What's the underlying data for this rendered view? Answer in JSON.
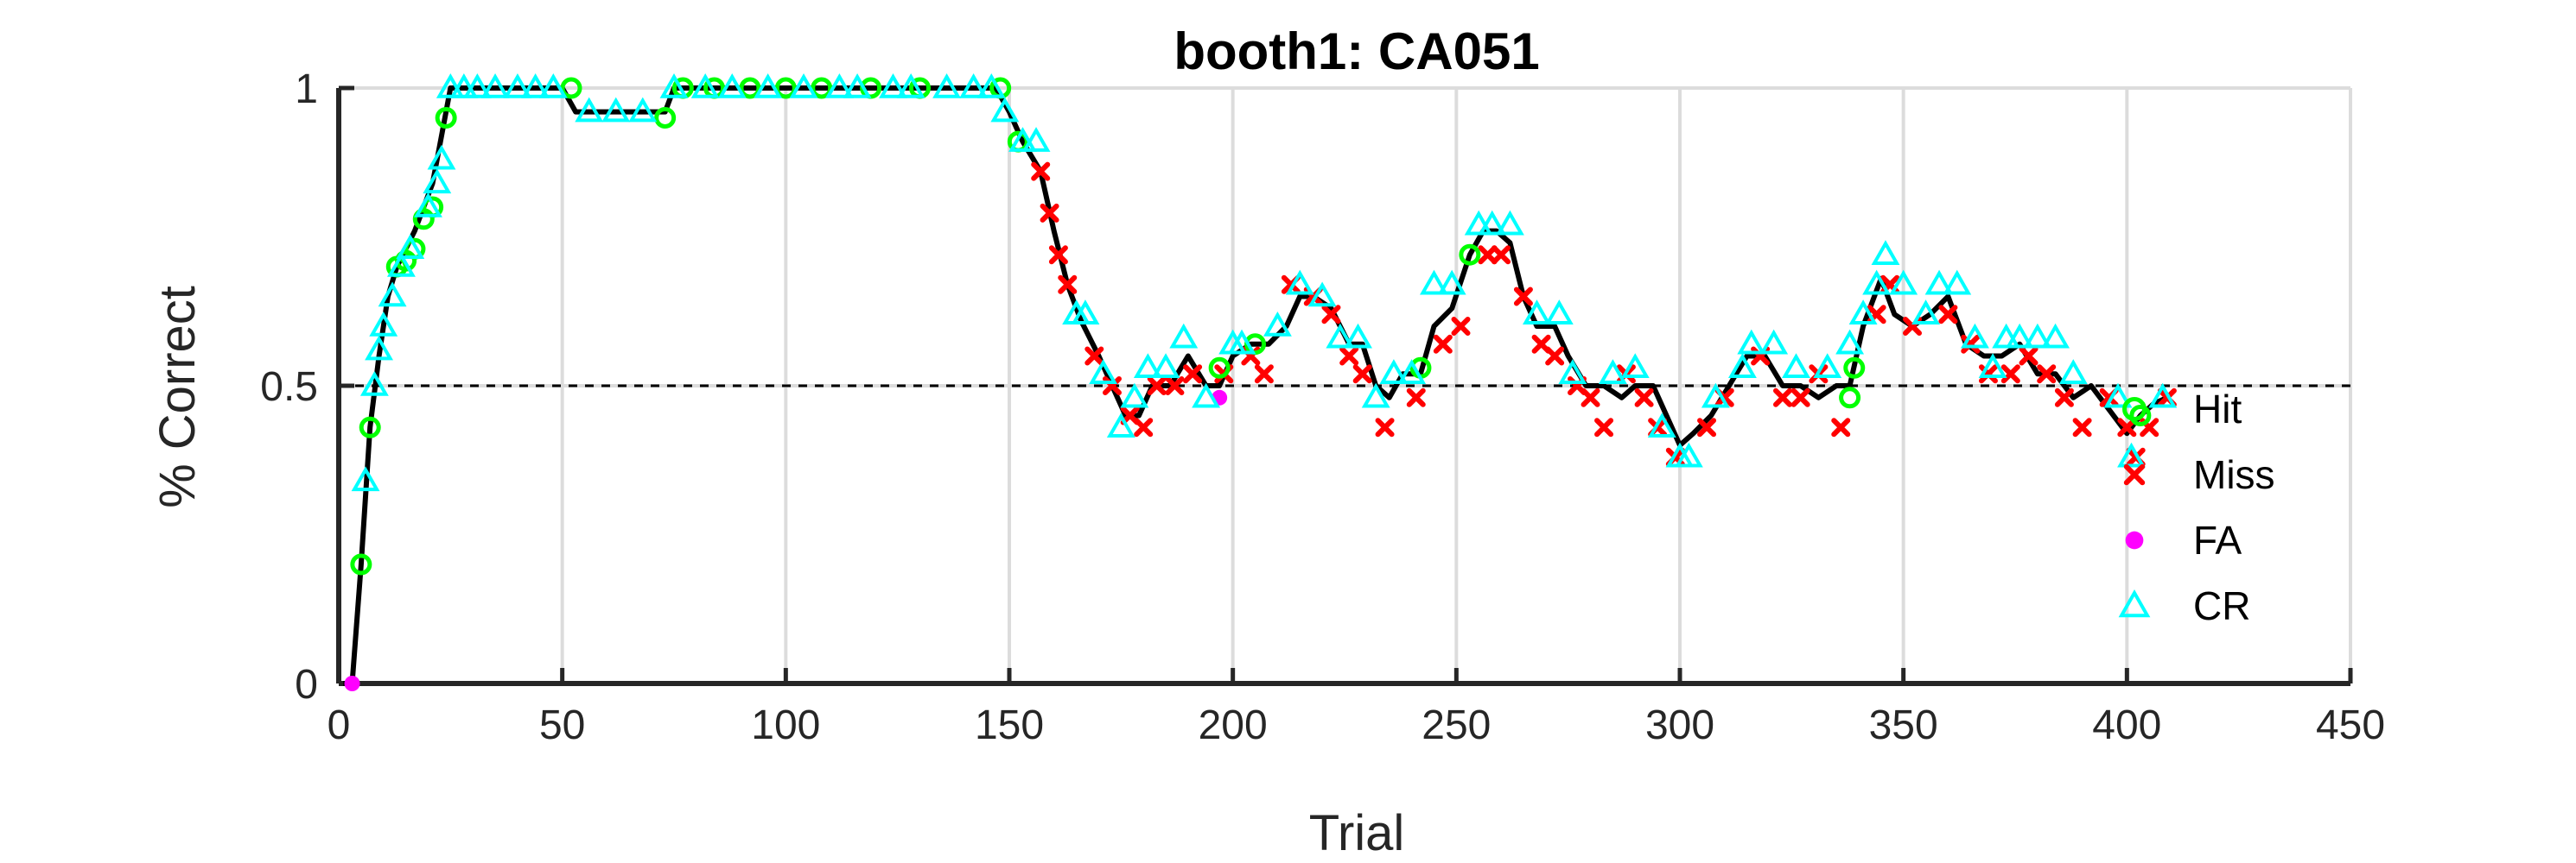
{
  "chart_data": {
    "type": "line",
    "title": "booth1: CA051",
    "xlabel": "Trial",
    "ylabel": "% Correct",
    "xlim": [
      0,
      450
    ],
    "ylim": [
      0,
      1
    ],
    "xticks": [
      0,
      50,
      100,
      150,
      200,
      250,
      300,
      350,
      400,
      450
    ],
    "yticks": [
      0,
      0.5,
      1
    ],
    "grid": true,
    "reference_line": {
      "y": 0.5,
      "style": "dashed"
    },
    "legend_position": "right",
    "line_color": "#000000",
    "colors": {
      "Hit": "#00ff00",
      "Miss": "#ff0000",
      "FA": "#ff00ff",
      "CR": "#00ffff"
    },
    "curve": [
      [
        1,
        0
      ],
      [
        3,
        0
      ],
      [
        5,
        0.2
      ],
      [
        7,
        0.43
      ],
      [
        9,
        0.55
      ],
      [
        11,
        0.65
      ],
      [
        13,
        0.7
      ],
      [
        15,
        0.73
      ],
      [
        17,
        0.76
      ],
      [
        19,
        0.8
      ],
      [
        21,
        0.84
      ],
      [
        23,
        0.92
      ],
      [
        25,
        1.0
      ],
      [
        30,
        1.0
      ],
      [
        40,
        1.0
      ],
      [
        50,
        1.0
      ],
      [
        53,
        0.96
      ],
      [
        60,
        0.96
      ],
      [
        70,
        0.96
      ],
      [
        73,
        0.96
      ],
      [
        75,
        1.0
      ],
      [
        90,
        1.0
      ],
      [
        110,
        1.0
      ],
      [
        130,
        1.0
      ],
      [
        147,
        1.0
      ],
      [
        150,
        0.96
      ],
      [
        153,
        0.91
      ],
      [
        157,
        0.86
      ],
      [
        160,
        0.76
      ],
      [
        163,
        0.67
      ],
      [
        166,
        0.61
      ],
      [
        170,
        0.55
      ],
      [
        173,
        0.5
      ],
      [
        176,
        0.45
      ],
      [
        179,
        0.45
      ],
      [
        182,
        0.5
      ],
      [
        186,
        0.5
      ],
      [
        190,
        0.55
      ],
      [
        194,
        0.5
      ],
      [
        197,
        0.5
      ],
      [
        200,
        0.55
      ],
      [
        204,
        0.57
      ],
      [
        208,
        0.57
      ],
      [
        212,
        0.6
      ],
      [
        215,
        0.65
      ],
      [
        218,
        0.65
      ],
      [
        222,
        0.63
      ],
      [
        226,
        0.57
      ],
      [
        229,
        0.57
      ],
      [
        232,
        0.5
      ],
      [
        235,
        0.48
      ],
      [
        238,
        0.52
      ],
      [
        242,
        0.52
      ],
      [
        245,
        0.6
      ],
      [
        249,
        0.63
      ],
      [
        253,
        0.72
      ],
      [
        256,
        0.76
      ],
      [
        259,
        0.76
      ],
      [
        262,
        0.74
      ],
      [
        265,
        0.65
      ],
      [
        268,
        0.6
      ],
      [
        272,
        0.6
      ],
      [
        275,
        0.55
      ],
      [
        279,
        0.5
      ],
      [
        283,
        0.5
      ],
      [
        287,
        0.48
      ],
      [
        290,
        0.5
      ],
      [
        294,
        0.5
      ],
      [
        297,
        0.45
      ],
      [
        300,
        0.4
      ],
      [
        303,
        0.42
      ],
      [
        307,
        0.45
      ],
      [
        311,
        0.5
      ],
      [
        315,
        0.55
      ],
      [
        319,
        0.55
      ],
      [
        323,
        0.5
      ],
      [
        327,
        0.5
      ],
      [
        331,
        0.48
      ],
      [
        335,
        0.5
      ],
      [
        338,
        0.5
      ],
      [
        341,
        0.6
      ],
      [
        345,
        0.68
      ],
      [
        348,
        0.62
      ],
      [
        352,
        0.6
      ],
      [
        356,
        0.62
      ],
      [
        360,
        0.65
      ],
      [
        364,
        0.57
      ],
      [
        368,
        0.55
      ],
      [
        372,
        0.55
      ],
      [
        376,
        0.57
      ],
      [
        380,
        0.52
      ],
      [
        384,
        0.52
      ],
      [
        388,
        0.48
      ],
      [
        392,
        0.5
      ],
      [
        396,
        0.46
      ],
      [
        400,
        0.42
      ],
      [
        403,
        0.45
      ],
      [
        406,
        0.47
      ],
      [
        409,
        0.48
      ]
    ],
    "series": [
      {
        "name": "Hit",
        "marker": "circle-open",
        "points": [
          [
            5,
            0.2
          ],
          [
            7,
            0.43
          ],
          [
            13,
            0.7
          ],
          [
            15,
            0.71
          ],
          [
            17,
            0.73
          ],
          [
            19,
            0.78
          ],
          [
            21,
            0.8
          ],
          [
            24,
            0.95
          ],
          [
            52,
            1.0
          ],
          [
            73,
            0.95
          ],
          [
            77,
            1.0
          ],
          [
            84,
            1.0
          ],
          [
            92,
            1.0
          ],
          [
            100,
            1.0
          ],
          [
            108,
            1.0
          ],
          [
            119,
            1.0
          ],
          [
            130,
            1.0
          ],
          [
            148,
            1.0
          ],
          [
            152,
            0.91
          ],
          [
            197,
            0.53
          ],
          [
            205,
            0.57
          ],
          [
            242,
            0.53
          ],
          [
            253,
            0.72
          ],
          [
            338,
            0.48
          ],
          [
            339,
            0.53
          ],
          [
            403,
            0.45
          ]
        ]
      },
      {
        "name": "Miss",
        "marker": "x",
        "points": [
          [
            157,
            0.86
          ],
          [
            159,
            0.79
          ],
          [
            161,
            0.72
          ],
          [
            163,
            0.67
          ],
          [
            169,
            0.55
          ],
          [
            173,
            0.5
          ],
          [
            177,
            0.45
          ],
          [
            180,
            0.43
          ],
          [
            183,
            0.5
          ],
          [
            187,
            0.5
          ],
          [
            191,
            0.52
          ],
          [
            198,
            0.52
          ],
          [
            204,
            0.55
          ],
          [
            207,
            0.52
          ],
          [
            213,
            0.67
          ],
          [
            218,
            0.65
          ],
          [
            222,
            0.62
          ],
          [
            226,
            0.55
          ],
          [
            229,
            0.52
          ],
          [
            234,
            0.43
          ],
          [
            241,
            0.48
          ],
          [
            247,
            0.57
          ],
          [
            251,
            0.6
          ],
          [
            257,
            0.72
          ],
          [
            260,
            0.72
          ],
          [
            265,
            0.65
          ],
          [
            269,
            0.57
          ],
          [
            272,
            0.55
          ],
          [
            277,
            0.5
          ],
          [
            280,
            0.48
          ],
          [
            283,
            0.43
          ],
          [
            288,
            0.52
          ],
          [
            292,
            0.48
          ],
          [
            295,
            0.43
          ],
          [
            299,
            0.38
          ],
          [
            306,
            0.43
          ],
          [
            310,
            0.48
          ],
          [
            318,
            0.55
          ],
          [
            323,
            0.48
          ],
          [
            327,
            0.48
          ],
          [
            331,
            0.52
          ],
          [
            336,
            0.43
          ],
          [
            344,
            0.62
          ],
          [
            347,
            0.67
          ],
          [
            352,
            0.6
          ],
          [
            360,
            0.62
          ],
          [
            365,
            0.57
          ],
          [
            369,
            0.52
          ],
          [
            374,
            0.52
          ],
          [
            378,
            0.55
          ],
          [
            382,
            0.52
          ],
          [
            386,
            0.48
          ],
          [
            390,
            0.43
          ],
          [
            396,
            0.48
          ],
          [
            400,
            0.43
          ],
          [
            402,
            0.38
          ],
          [
            405,
            0.43
          ],
          [
            409,
            0.48
          ]
        ]
      },
      {
        "name": "FA",
        "marker": "dot",
        "points": [
          [
            3,
            0
          ],
          [
            197,
            0.48
          ]
        ]
      },
      {
        "name": "CR",
        "marker": "triangle-open",
        "points": [
          [
            6,
            0.34
          ],
          [
            8,
            0.5
          ],
          [
            9,
            0.56
          ],
          [
            10,
            0.6
          ],
          [
            12,
            0.65
          ],
          [
            14,
            0.7
          ],
          [
            16,
            0.73
          ],
          [
            20,
            0.8
          ],
          [
            22,
            0.84
          ],
          [
            23,
            0.88
          ],
          [
            25,
            1.0
          ],
          [
            28,
            1.0
          ],
          [
            31,
            1.0
          ],
          [
            35,
            1.0
          ],
          [
            40,
            1.0
          ],
          [
            44,
            1.0
          ],
          [
            48,
            1.0
          ],
          [
            56,
            0.96
          ],
          [
            62,
            0.96
          ],
          [
            68,
            0.96
          ],
          [
            75,
            1.0
          ],
          [
            82,
            1.0
          ],
          [
            88,
            1.0
          ],
          [
            96,
            1.0
          ],
          [
            104,
            1.0
          ],
          [
            112,
            1.0
          ],
          [
            116,
            1.0
          ],
          [
            124,
            1.0
          ],
          [
            128,
            1.0
          ],
          [
            136,
            1.0
          ],
          [
            142,
            1.0
          ],
          [
            146,
            1.0
          ],
          [
            149,
            0.96
          ],
          [
            153,
            0.91
          ],
          [
            156,
            0.91
          ],
          [
            165,
            0.62
          ],
          [
            167,
            0.62
          ],
          [
            171,
            0.52
          ],
          [
            175,
            0.43
          ],
          [
            178,
            0.48
          ],
          [
            181,
            0.53
          ],
          [
            185,
            0.53
          ],
          [
            189,
            0.58
          ],
          [
            194,
            0.48
          ],
          [
            200,
            0.57
          ],
          [
            202,
            0.57
          ],
          [
            210,
            0.6
          ],
          [
            215,
            0.67
          ],
          [
            220,
            0.65
          ],
          [
            224,
            0.58
          ],
          [
            228,
            0.58
          ],
          [
            232,
            0.48
          ],
          [
            236,
            0.52
          ],
          [
            240,
            0.52
          ],
          [
            245,
            0.67
          ],
          [
            249,
            0.67
          ],
          [
            255,
            0.77
          ],
          [
            258,
            0.77
          ],
          [
            262,
            0.77
          ],
          [
            268,
            0.62
          ],
          [
            273,
            0.62
          ],
          [
            276,
            0.52
          ],
          [
            285,
            0.52
          ],
          [
            290,
            0.53
          ],
          [
            296,
            0.43
          ],
          [
            300,
            0.38
          ],
          [
            302,
            0.38
          ],
          [
            308,
            0.48
          ],
          [
            314,
            0.53
          ],
          [
            316,
            0.57
          ],
          [
            321,
            0.57
          ],
          [
            326,
            0.53
          ],
          [
            333,
            0.53
          ],
          [
            338,
            0.57
          ],
          [
            341,
            0.62
          ],
          [
            344,
            0.67
          ],
          [
            346,
            0.72
          ],
          [
            350,
            0.67
          ],
          [
            355,
            0.62
          ],
          [
            358,
            0.67
          ],
          [
            362,
            0.67
          ],
          [
            366,
            0.58
          ],
          [
            370,
            0.53
          ],
          [
            373,
            0.58
          ],
          [
            376,
            0.58
          ],
          [
            380,
            0.58
          ],
          [
            384,
            0.58
          ],
          [
            388,
            0.52
          ],
          [
            398,
            0.48
          ],
          [
            401,
            0.38
          ],
          [
            408,
            0.48
          ]
        ]
      }
    ]
  }
}
